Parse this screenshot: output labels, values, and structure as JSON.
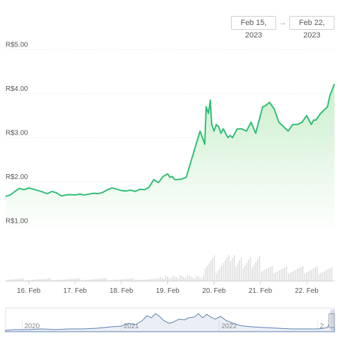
{
  "range_selector": {
    "start": "Feb 15, 2023",
    "arrow": "→",
    "end": "Feb 22, 2023"
  },
  "colors": {
    "line": "#2fbd74",
    "area_top": "#c7eec9",
    "volume": "#d4d4d4",
    "navigator": "#5b7fb0",
    "grid": "#e6e6e6"
  },
  "chart_data": {
    "type": "area",
    "y_axis": {
      "ticks": [
        "R$1.00",
        "R$2.00",
        "R$3.00",
        "R$4.00",
        "R$5.00"
      ],
      "tick_values": [
        1,
        2,
        3,
        4,
        5
      ],
      "range": [
        0.85,
        5.1
      ]
    },
    "x_axis": {
      "ticks": [
        "16. Feb",
        "17. Feb",
        "18. Feb",
        "19. Feb",
        "20. Feb",
        "21. Feb",
        "22. Feb"
      ],
      "tick_days": [
        16,
        17,
        18,
        19,
        20,
        21,
        22
      ],
      "range": [
        15.5,
        22.6
      ]
    },
    "price": {
      "day": [
        15.5,
        15.6,
        15.7,
        15.8,
        15.9,
        16.0,
        16.1,
        16.2,
        16.3,
        16.4,
        16.5,
        16.6,
        16.7,
        16.8,
        16.9,
        17.0,
        17.1,
        17.2,
        17.3,
        17.4,
        17.5,
        17.6,
        17.7,
        17.8,
        17.9,
        18.0,
        18.1,
        18.2,
        18.3,
        18.4,
        18.5,
        18.6,
        18.7,
        18.8,
        18.9,
        19.0,
        19.05,
        19.1,
        19.15,
        19.2,
        19.3,
        19.4,
        19.5,
        19.6,
        19.7,
        19.8,
        19.83,
        19.88,
        19.92,
        19.95,
        20.0,
        20.05,
        20.1,
        20.15,
        20.2,
        20.25,
        20.3,
        20.35,
        20.4,
        20.5,
        20.6,
        20.7,
        20.8,
        20.9,
        21.0,
        21.05,
        21.1,
        21.2,
        21.3,
        21.4,
        21.5,
        21.6,
        21.7,
        21.8,
        21.9,
        22.0,
        22.1,
        22.15,
        22.2,
        22.3,
        22.4,
        22.45,
        22.5,
        22.6
      ],
      "value": [
        1.67,
        1.7,
        1.78,
        1.85,
        1.82,
        1.86,
        1.83,
        1.8,
        1.77,
        1.73,
        1.78,
        1.75,
        1.68,
        1.7,
        1.71,
        1.7,
        1.72,
        1.7,
        1.72,
        1.74,
        1.73,
        1.76,
        1.82,
        1.86,
        1.83,
        1.8,
        1.79,
        1.81,
        1.78,
        1.83,
        1.82,
        1.88,
        2.05,
        1.98,
        2.12,
        2.18,
        2.1,
        2.12,
        2.05,
        2.05,
        2.06,
        2.1,
        2.45,
        2.8,
        3.15,
        2.85,
        3.7,
        3.55,
        3.85,
        3.3,
        3.15,
        3.3,
        3.25,
        3.1,
        3.2,
        3.1,
        3.0,
        3.05,
        3.0,
        3.2,
        3.2,
        3.15,
        3.35,
        3.1,
        3.5,
        3.7,
        3.72,
        3.8,
        3.65,
        3.35,
        3.25,
        3.15,
        3.3,
        3.3,
        3.35,
        3.5,
        3.3,
        3.4,
        3.4,
        3.55,
        3.65,
        3.7,
        3.95,
        4.22
      ]
    }
  }
}
